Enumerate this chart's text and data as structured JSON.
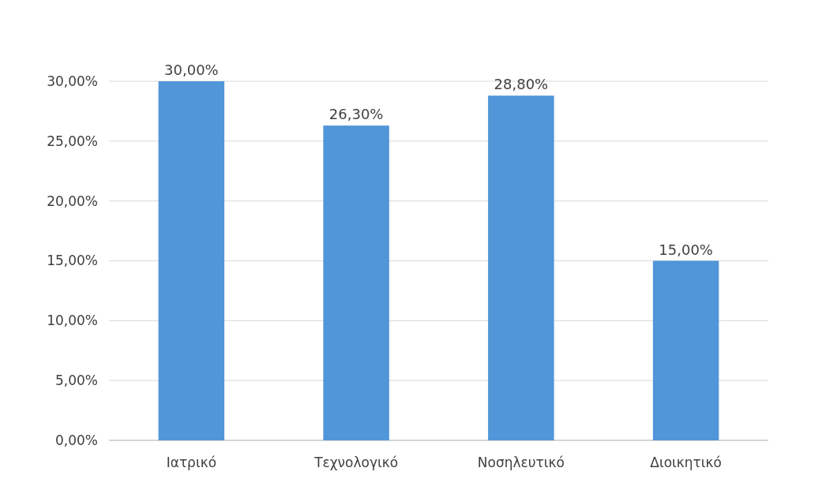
{
  "chart_data": {
    "type": "bar",
    "categories": [
      "Ιατρικό",
      "Τεχνολογικό",
      "Νοσηλευτικό",
      "Διοικητικό"
    ],
    "values": [
      30,
      26.3,
      28.8,
      15
    ],
    "color": "#5096d8",
    "value_labels": [
      "30,00%",
      "26,30%",
      "28,80%",
      "15,00%"
    ],
    "ylim": [
      0,
      30
    ],
    "yticks": [
      {
        "value": 0,
        "label": "0,00%"
      },
      {
        "value": 5,
        "label": "5,00%"
      },
      {
        "value": 10,
        "label": "10,00%"
      },
      {
        "value": 15,
        "label": "15,00%"
      },
      {
        "value": 20,
        "label": "20,00%"
      },
      {
        "value": 25,
        "label": "25,00%"
      },
      {
        "value": 30,
        "label": "30,00%"
      }
    ],
    "grid": true
  }
}
